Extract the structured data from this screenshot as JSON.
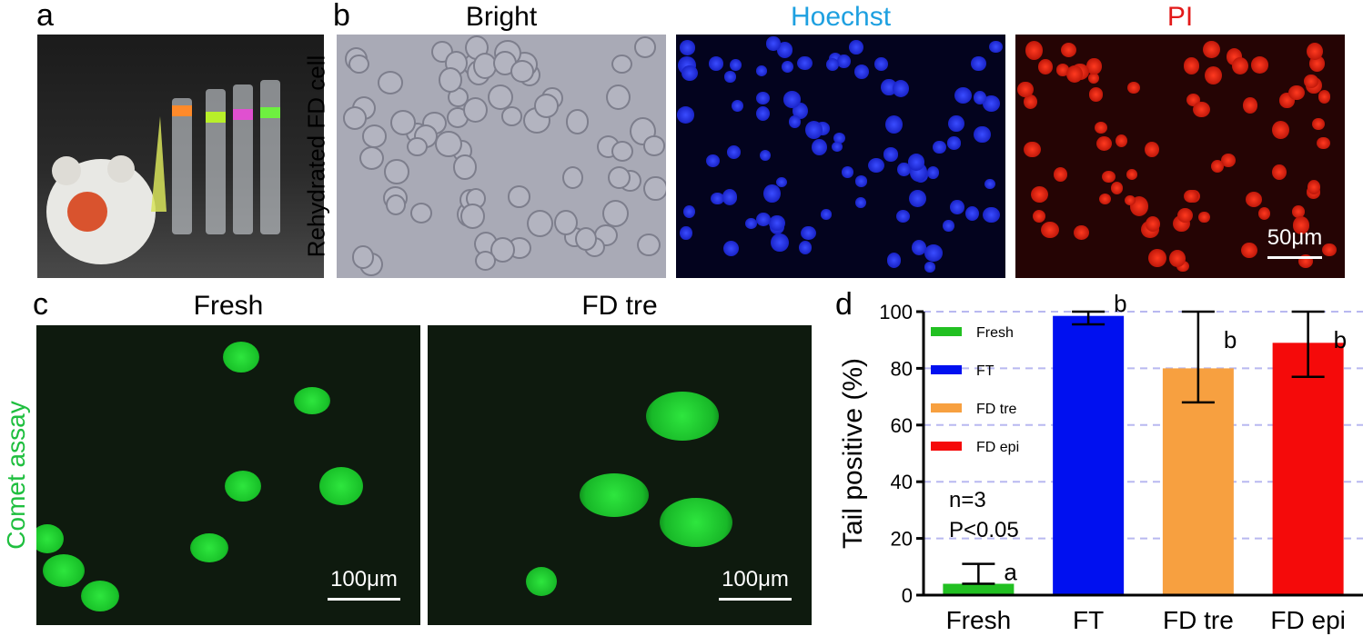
{
  "panels": {
    "a": {
      "label": "a"
    },
    "b": {
      "label": "b",
      "row_label": "Rehydrated FD cell",
      "titles": [
        "Bright",
        "Hoechst",
        "PI"
      ],
      "title_colors": [
        "#000000",
        "#1ea0e0",
        "#e31a1a"
      ],
      "scale_text": "50μm"
    },
    "c": {
      "label": "c",
      "row_label": "Comet assay",
      "row_label_color": "#1fbf3f",
      "titles": [
        "Fresh",
        "FD tre"
      ],
      "scale_text": "100μm"
    },
    "d": {
      "label": "d"
    }
  },
  "chart_data": {
    "type": "bar",
    "categories": [
      "Fresh",
      "FT",
      "FD tre",
      "FD epi"
    ],
    "values": [
      4,
      98.5,
      80,
      89
    ],
    "error_low": [
      4,
      95.5,
      68,
      77
    ],
    "error_high": [
      11,
      100,
      100,
      100
    ],
    "colors": [
      "#22c022",
      "#0010f0",
      "#f7a040",
      "#f50a0a"
    ],
    "sig_letters": [
      "a",
      "b",
      "b",
      "b"
    ],
    "legend": [
      "Fresh",
      "FT",
      "FD tre",
      "FD epi"
    ],
    "ylabel": "Tail positive (%)",
    "ylim": [
      0,
      100
    ],
    "yticks": [
      0,
      20,
      40,
      60,
      80,
      100
    ],
    "grid": true,
    "legend_position": "top-left",
    "annotations": [
      "n=3",
      "P<0.05"
    ]
  }
}
